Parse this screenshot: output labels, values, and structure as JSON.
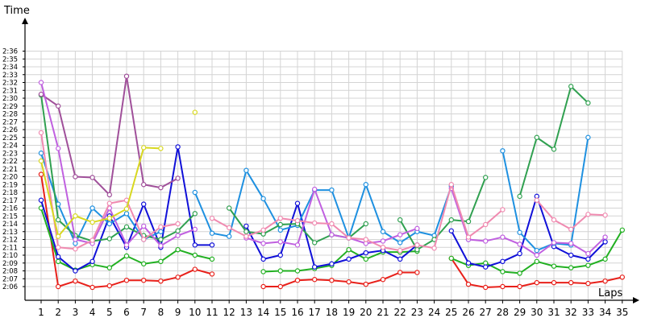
{
  "chart_data": {
    "type": "line",
    "ylabel": "Time",
    "xlabel": "Laps",
    "x": [
      1,
      2,
      3,
      4,
      5,
      6,
      7,
      8,
      9,
      10,
      11,
      12,
      13,
      14,
      15,
      16,
      17,
      18,
      19,
      20,
      21,
      22,
      23,
      24,
      25,
      26,
      27,
      28,
      29,
      30,
      31,
      32,
      33,
      34,
      35
    ],
    "xlim": [
      1,
      35
    ],
    "ylim": [
      "2:05",
      "2:36"
    ],
    "grid": true,
    "y_tick_labels": [
      "2:06",
      "2:07",
      "2:08",
      "2:09",
      "2:10",
      "2:11",
      "2:12",
      "2:13",
      "2:14",
      "2:15",
      "2:16",
      "2:17",
      "2:18",
      "2:19",
      "2:20",
      "2:21",
      "2:22",
      "2:23",
      "2:24",
      "2:25",
      "2:26",
      "2:27",
      "2:28",
      "2:29",
      "2:30",
      "2:31",
      "2:32",
      "2:33",
      "2:34",
      "2:35",
      "2:36"
    ],
    "series": [
      {
        "color": "#e8201a",
        "values": [
          "2:20.3",
          "2:06.0",
          "2:06.7",
          "2:05.9",
          "2:06.1",
          "2:06.8",
          "2:06.8",
          "2:06.7",
          "2:07.2",
          "2:08.2",
          "2:07.6",
          null,
          null,
          "2:06.0",
          "2:06.0",
          "2:06.8",
          "2:06.9",
          "2:06.8",
          "2:06.6",
          "2:06.3",
          "2:06.9",
          "2:07.8",
          "2:07.8",
          null,
          "2:09.6",
          "2:06.3",
          "2:05.9",
          "2:06.0",
          "2:06.0",
          "2:06.5",
          "2:06.5",
          "2:06.5",
          "2:06.4",
          "2:06.7",
          "2:07.2"
        ]
      },
      {
        "color": "#22b022",
        "values": [
          "2:16.0",
          "2:09.2",
          "2:08.1",
          "2:08.8",
          "2:08.4",
          "2:09.9",
          "2:08.9",
          "2:09.2",
          "2:10.7",
          "2:10.0",
          "2:09.5",
          null,
          null,
          "2:07.9",
          "2:08.0",
          "2:08.0",
          "2:08.3",
          "2:08.7",
          "2:10.7",
          "2:09.5",
          "2:10.4",
          "2:10.4",
          "2:10.5",
          null,
          "2:09.6",
          "2:08.7",
          "2:09.0",
          "2:07.9",
          "2:07.7",
          "2:09.2",
          "2:08.6",
          "2:08.4",
          "2:08.7",
          "2:09.5",
          "2:13.2"
        ]
      },
      {
        "color": "#1010d8",
        "values": [
          "2:17.0",
          "2:09.8",
          "2:08.0",
          "2:09.2",
          "2:15.0",
          "2:11.0",
          "2:16.5",
          "2:11.0",
          "2:23.8",
          "2:11.3",
          "2:11.3",
          null,
          "2:13.7",
          "2:09.5",
          "2:10.0",
          "2:16.6",
          "2:08.5",
          "2:08.9",
          "2:09.5",
          "2:10.3",
          "2:10.6",
          "2:09.5",
          "2:11.3",
          null,
          "2:13.1",
          "2:09.0",
          "2:08.5",
          "2:09.2",
          "2:10.2",
          "2:17.5",
          "2:11.1",
          "2:10.0",
          "2:09.5",
          "2:11.7",
          null
        ]
      },
      {
        "color": "#1e90e0",
        "values": [
          "2:23.0",
          "2:16.5",
          "2:11.5",
          "2:16.0",
          "2:14.0",
          "2:15.3",
          "2:12.0",
          "2:13.0",
          null,
          "2:18.0",
          "2:12.8",
          "2:12.4",
          "2:20.8",
          "2:17.2",
          "2:13.2",
          "2:13.8",
          "2:18.3",
          "2:18.3",
          "2:12.2",
          "2:19.0",
          "2:13.0",
          "2:11.6",
          "2:13.0",
          "2:12.5",
          "2:18.8",
          "2:12.0",
          null,
          "2:23.3",
          "2:12.9",
          "2:10.6",
          "2:11.5",
          "2:11.3",
          "2:25.0",
          null,
          null
        ]
      },
      {
        "color": "#30a050",
        "values": [
          "2:30.4",
          "2:14.5",
          "2:12.5",
          "2:11.8",
          "2:12.1",
          "2:13.6",
          "2:12.5",
          "2:12.0",
          "2:13.1",
          "2:15.3",
          null,
          "2:16.0",
          "2:13.0",
          "2:12.7",
          "2:13.9",
          "2:14.0",
          "2:11.6",
          "2:12.6",
          "2:12.2",
          "2:14.0",
          null,
          "2:14.5",
          "2:10.7",
          "2:12.0",
          "2:14.5",
          "2:14.3",
          "2:19.9",
          null,
          "2:17.5",
          "2:25.0",
          "2:23.5",
          "2:31.5",
          "2:29.4",
          null,
          null
        ]
      },
      {
        "color": "#a0509a",
        "values": [
          "2:30.5",
          "2:29.0",
          "2:20.0",
          "2:19.9",
          "2:17.7",
          "2:32.8",
          "2:19.0",
          "2:18.6",
          "2:19.8",
          null,
          null,
          null,
          null,
          null,
          null,
          null,
          null,
          null,
          null,
          null,
          null,
          null,
          null,
          null,
          null,
          null,
          null,
          null,
          null,
          null,
          null,
          null,
          null,
          null,
          null
        ]
      },
      {
        "color": "#c060e0",
        "values": [
          "2:32.0",
          "2:23.6",
          "2:12.0",
          "2:11.5",
          "2:16.0",
          "2:11.3",
          "2:13.7",
          "2:11.2",
          "2:12.5",
          "2:13.3",
          null,
          null,
          "2:12.2",
          "2:11.5",
          "2:11.7",
          "2:11.3",
          "2:18.4",
          "2:12.6",
          "2:12.2",
          "2:11.5",
          "2:11.8",
          "2:12.6",
          "2:13.4",
          null,
          "2:18.5",
          "2:12.0",
          "2:11.8",
          "2:12.3",
          "2:11.4",
          "2:10.0",
          "2:11.6",
          "2:11.5",
          "2:10.2",
          "2:12.3",
          null
        ]
      },
      {
        "color": "#f08ab0",
        "values": [
          "2:25.6",
          "2:11.0",
          "2:10.8",
          "2:11.9",
          "2:16.6",
          "2:17.0",
          "2:12.0",
          "2:13.6",
          "2:14.0",
          null,
          "2:14.7",
          "2:13.5",
          "2:12.4",
          "2:13.2",
          "2:14.7",
          "2:14.4",
          "2:14.1",
          "2:14.0",
          "2:12.2",
          "2:12.0",
          "2:11.0",
          "2:10.6",
          "2:11.3",
          "2:10.9",
          "2:19.0",
          "2:12.3",
          "2:13.9",
          "2:15.8",
          null,
          "2:17.0",
          "2:14.5",
          "2:13.3",
          "2:15.2",
          "2:15.1",
          null
        ]
      },
      {
        "color": "#d8d820",
        "values": [
          "2:22.0",
          "2:12.4",
          "2:15.0",
          "2:14.2",
          "2:14.7",
          "2:15.9",
          "2:23.7",
          "2:23.6",
          null,
          "2:28.2",
          null,
          null,
          null,
          null,
          null,
          null,
          null,
          null,
          null,
          null,
          null,
          null,
          null,
          null,
          null,
          null,
          null,
          null,
          null,
          null,
          null,
          null,
          null,
          null,
          null
        ]
      }
    ]
  }
}
